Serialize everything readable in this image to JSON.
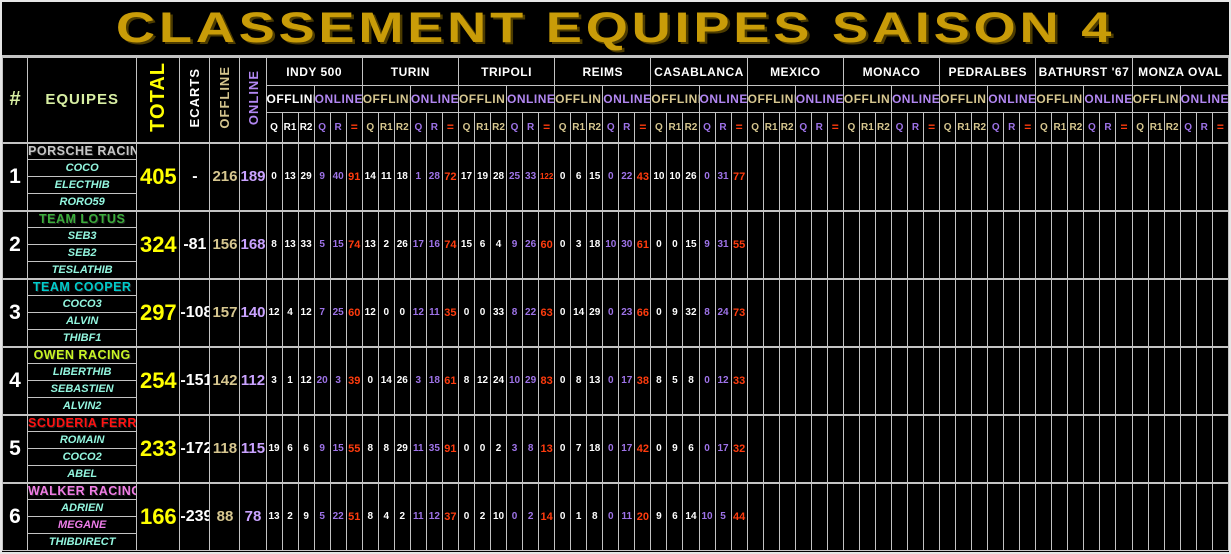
{
  "title": "CLASSEMENT EQUIPES SAISON 4",
  "header": {
    "rank": "#",
    "equipes": "EQUIPES",
    "total": "TOTAL",
    "ecarts": "ECARTS",
    "offline": "OFFLINE",
    "online": "ONLINE",
    "offline_subcols": [
      "Q",
      "R1",
      "R2"
    ],
    "online_subcols": [
      "Q",
      "R",
      "="
    ]
  },
  "races": [
    {
      "name": "INDY 500",
      "offline_highlight": true
    },
    {
      "name": "TURIN",
      "offline_highlight": false
    },
    {
      "name": "TRIPOLI",
      "offline_highlight": false
    },
    {
      "name": "REIMS",
      "offline_highlight": false
    },
    {
      "name": "CASABLANCA",
      "offline_highlight": false
    },
    {
      "name": "MEXICO",
      "offline_highlight": false
    },
    {
      "name": "MONACO",
      "offline_highlight": false
    },
    {
      "name": "PEDRALBES",
      "offline_highlight": false
    },
    {
      "name": "BATHURST '67",
      "offline_highlight": false
    },
    {
      "name": "MONZA OVAL",
      "offline_highlight": false
    }
  ],
  "colors": {
    "title": "#C99C08",
    "grid": "#c3c3c3",
    "header_label": "#D8EFA3",
    "total_value": "#FFFF00",
    "offline_value": "#D6C68F",
    "online_value": "#C9A2FF",
    "offline_header": "#D6C68F",
    "online_header": "#B287F2",
    "online_data": "#9E73E8",
    "equals_data": "#FF3B0D",
    "driver_default": "#93F6DF"
  },
  "teams": [
    {
      "rank": "1",
      "name": "PORSCHE RACING",
      "color": "#C6C6C6",
      "drivers": [
        {
          "name": "COCO",
          "color": "#93F6DF"
        },
        {
          "name": "ELECTHIB",
          "color": "#93F6DF"
        },
        {
          "name": "RORO59",
          "color": "#93F6DF"
        }
      ],
      "total": "405",
      "ecarts": "-",
      "offline_total": "216",
      "online_total": "189",
      "results": [
        [
          "0",
          "13",
          "29",
          "9",
          "40",
          "91"
        ],
        [
          "14",
          "11",
          "18",
          "1",
          "28",
          "72"
        ],
        [
          "17",
          "19",
          "28",
          "25",
          "33",
          "122"
        ],
        [
          "0",
          "6",
          "15",
          "0",
          "22",
          "43"
        ],
        [
          "10",
          "10",
          "26",
          "0",
          "31",
          "77"
        ],
        [
          "",
          "",
          "",
          "",
          "",
          ""
        ],
        [
          "",
          "",
          "",
          "",
          "",
          ""
        ],
        [
          "",
          "",
          "",
          "",
          "",
          ""
        ],
        [
          "",
          "",
          "",
          "",
          "",
          ""
        ],
        [
          "",
          "",
          "",
          "",
          "",
          ""
        ]
      ]
    },
    {
      "rank": "2",
      "name": "TEAM LOTUS",
      "color": "#3BAE3B",
      "drivers": [
        {
          "name": "SEB3",
          "color": "#93F6DF"
        },
        {
          "name": "SEB2",
          "color": "#93F6DF"
        },
        {
          "name": "TESLATHIB",
          "color": "#93F6DF"
        }
      ],
      "total": "324",
      "ecarts": "-81",
      "offline_total": "156",
      "online_total": "168",
      "results": [
        [
          "8",
          "13",
          "33",
          "5",
          "15",
          "74"
        ],
        [
          "13",
          "2",
          "26",
          "17",
          "16",
          "74"
        ],
        [
          "15",
          "6",
          "4",
          "9",
          "26",
          "60"
        ],
        [
          "0",
          "3",
          "18",
          "10",
          "30",
          "61"
        ],
        [
          "0",
          "0",
          "15",
          "9",
          "31",
          "55"
        ],
        [
          "",
          "",
          "",
          "",
          "",
          ""
        ],
        [
          "",
          "",
          "",
          "",
          "",
          ""
        ],
        [
          "",
          "",
          "",
          "",
          "",
          ""
        ],
        [
          "",
          "",
          "",
          "",
          "",
          ""
        ],
        [
          "",
          "",
          "",
          "",
          "",
          ""
        ]
      ]
    },
    {
      "rank": "3",
      "name": "TEAM COOPER",
      "color": "#00CCCC",
      "drivers": [
        {
          "name": "COCO3",
          "color": "#93F6DF"
        },
        {
          "name": "ALVIN",
          "color": "#93F6DF"
        },
        {
          "name": "THIBF1",
          "color": "#93F6DF"
        }
      ],
      "total": "297",
      "ecarts": "-108",
      "offline_total": "157",
      "online_total": "140",
      "results": [
        [
          "12",
          "4",
          "12",
          "7",
          "25",
          "60"
        ],
        [
          "12",
          "0",
          "0",
          "12",
          "11",
          "35"
        ],
        [
          "0",
          "0",
          "33",
          "8",
          "22",
          "63"
        ],
        [
          "0",
          "14",
          "29",
          "0",
          "23",
          "66"
        ],
        [
          "0",
          "9",
          "32",
          "8",
          "24",
          "73"
        ],
        [
          "",
          "",
          "",
          "",
          "",
          ""
        ],
        [
          "",
          "",
          "",
          "",
          "",
          ""
        ],
        [
          "",
          "",
          "",
          "",
          "",
          ""
        ],
        [
          "",
          "",
          "",
          "",
          "",
          ""
        ],
        [
          "",
          "",
          "",
          "",
          "",
          ""
        ]
      ]
    },
    {
      "rank": "4",
      "name": "OWEN RACING",
      "color": "#C8F425",
      "drivers": [
        {
          "name": "LIBERTHIB",
          "color": "#93F6DF"
        },
        {
          "name": "SEBASTIEN",
          "color": "#93F6DF"
        },
        {
          "name": "ALVIN2",
          "color": "#93F6DF"
        }
      ],
      "total": "254",
      "ecarts": "-151",
      "offline_total": "142",
      "online_total": "112",
      "results": [
        [
          "3",
          "1",
          "12",
          "20",
          "3",
          "39"
        ],
        [
          "0",
          "14",
          "26",
          "3",
          "18",
          "61"
        ],
        [
          "8",
          "12",
          "24",
          "10",
          "29",
          "83"
        ],
        [
          "0",
          "8",
          "13",
          "0",
          "17",
          "38"
        ],
        [
          "8",
          "5",
          "8",
          "0",
          "12",
          "33"
        ],
        [
          "",
          "",
          "",
          "",
          "",
          ""
        ],
        [
          "",
          "",
          "",
          "",
          "",
          ""
        ],
        [
          "",
          "",
          "",
          "",
          "",
          ""
        ],
        [
          "",
          "",
          "",
          "",
          "",
          ""
        ],
        [
          "",
          "",
          "",
          "",
          "",
          ""
        ]
      ]
    },
    {
      "rank": "5",
      "name": "SCUDERIA FERRARI",
      "color": "#FF1212",
      "drivers": [
        {
          "name": "ROMAIN",
          "color": "#93F6DF"
        },
        {
          "name": "COCO2",
          "color": "#93F6DF"
        },
        {
          "name": "ABEL",
          "color": "#93F6DF"
        }
      ],
      "total": "233",
      "ecarts": "-172",
      "offline_total": "118",
      "online_total": "115",
      "results": [
        [
          "19",
          "6",
          "6",
          "9",
          "15",
          "55"
        ],
        [
          "8",
          "8",
          "29",
          "11",
          "35",
          "91"
        ],
        [
          "0",
          "0",
          "2",
          "3",
          "8",
          "13"
        ],
        [
          "0",
          "7",
          "18",
          "0",
          "17",
          "42"
        ],
        [
          "0",
          "9",
          "6",
          "0",
          "17",
          "32"
        ],
        [
          "",
          "",
          "",
          "",
          "",
          ""
        ],
        [
          "",
          "",
          "",
          "",
          "",
          ""
        ],
        [
          "",
          "",
          "",
          "",
          "",
          ""
        ],
        [
          "",
          "",
          "",
          "",
          "",
          ""
        ],
        [
          "",
          "",
          "",
          "",
          "",
          ""
        ]
      ]
    },
    {
      "rank": "6",
      "name": "WALKER RACING",
      "color": "#F07CE4",
      "drivers": [
        {
          "name": "ADRIEN",
          "color": "#93F6DF"
        },
        {
          "name": "MEGANE",
          "color": "#EE7DE9"
        },
        {
          "name": "THIBDIRECT",
          "color": "#93F6DF"
        }
      ],
      "total": "166",
      "ecarts": "-239",
      "offline_total": "88",
      "online_total": "78",
      "results": [
        [
          "13",
          "2",
          "9",
          "5",
          "22",
          "51"
        ],
        [
          "8",
          "4",
          "2",
          "11",
          "12",
          "37"
        ],
        [
          "0",
          "2",
          "10",
          "0",
          "2",
          "14"
        ],
        [
          "0",
          "1",
          "8",
          "0",
          "11",
          "20"
        ],
        [
          "9",
          "6",
          "14",
          "10",
          "5",
          "44"
        ],
        [
          "",
          "",
          "",
          "",
          "",
          ""
        ],
        [
          "",
          "",
          "",
          "",
          "",
          ""
        ],
        [
          "",
          "",
          "",
          "",
          "",
          ""
        ],
        [
          "",
          "",
          "",
          "",
          "",
          ""
        ],
        [
          "",
          "",
          "",
          "",
          "",
          ""
        ]
      ]
    }
  ]
}
